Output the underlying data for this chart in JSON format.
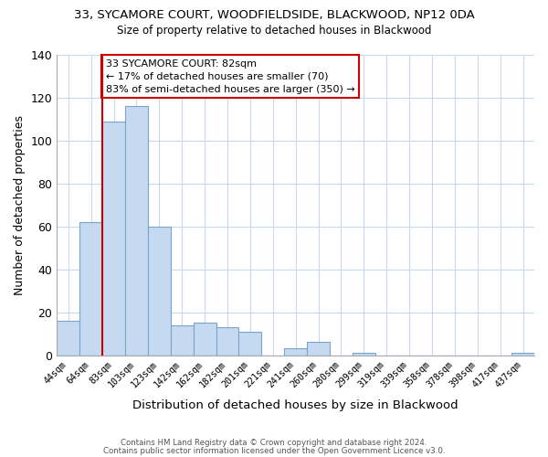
{
  "title_line1": "33, SYCAMORE COURT, WOODFIELDSIDE, BLACKWOOD, NP12 0DA",
  "title_line2": "Size of property relative to detached houses in Blackwood",
  "xlabel": "Distribution of detached houses by size in Blackwood",
  "ylabel": "Number of detached properties",
  "bin_labels": [
    "44sqm",
    "64sqm",
    "83sqm",
    "103sqm",
    "123sqm",
    "142sqm",
    "162sqm",
    "182sqm",
    "201sqm",
    "221sqm",
    "241sqm",
    "260sqm",
    "280sqm",
    "299sqm",
    "319sqm",
    "339sqm",
    "358sqm",
    "378sqm",
    "398sqm",
    "417sqm",
    "437sqm"
  ],
  "bar_heights": [
    16,
    62,
    109,
    116,
    60,
    14,
    15,
    13,
    11,
    0,
    3,
    6,
    0,
    1,
    0,
    0,
    0,
    0,
    0,
    0,
    1
  ],
  "bar_color": "#c5d9f1",
  "bar_edge_color": "#7aa4cc",
  "vline_x_index": 2,
  "marker_label_line1": "33 SYCAMORE COURT: 82sqm",
  "marker_label_line2": "← 17% of detached houses are smaller (70)",
  "marker_label_line3": "83% of semi-detached houses are larger (350) →",
  "annotation_box_color": "#ffffff",
  "annotation_box_edge": "#cc0000",
  "vline_color": "#cc0000",
  "ylim": [
    0,
    140
  ],
  "yticks": [
    0,
    20,
    40,
    60,
    80,
    100,
    120,
    140
  ],
  "footer_line1": "Contains HM Land Registry data © Crown copyright and database right 2024.",
  "footer_line2": "Contains public sector information licensed under the Open Government Licence v3.0.",
  "background_color": "#ffffff",
  "grid_color": "#c8d8ee"
}
